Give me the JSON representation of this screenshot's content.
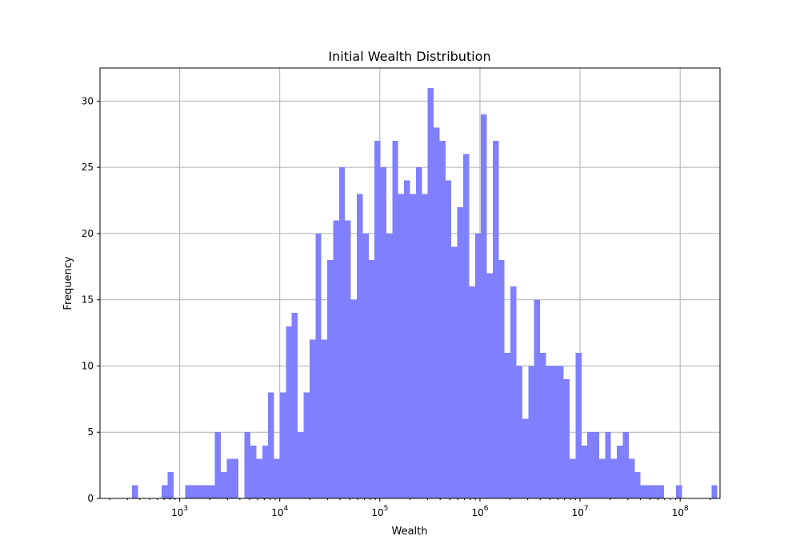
{
  "chart_data": {
    "type": "bar",
    "title": "Initial Wealth Distribution",
    "xlabel": "Wealth",
    "ylabel": "Frequency",
    "x_scale": "log",
    "xlim": [
      160,
      250000000
    ],
    "ylim": [
      0,
      32.5
    ],
    "grid": true,
    "bar_color": "#8080ff",
    "x_ticks": [
      {
        "value": 1000,
        "base": "10",
        "exp": "3"
      },
      {
        "value": 10000,
        "base": "10",
        "exp": "4"
      },
      {
        "value": 100000,
        "base": "10",
        "exp": "5"
      },
      {
        "value": 1000000,
        "base": "10",
        "exp": "6"
      },
      {
        "value": 10000000,
        "base": "10",
        "exp": "7"
      },
      {
        "value": 100000000,
        "base": "10",
        "exp": "8"
      }
    ],
    "y_ticks": [
      {
        "value": 0,
        "label": "0"
      },
      {
        "value": 5,
        "label": "5"
      },
      {
        "value": 10,
        "label": "10"
      },
      {
        "value": 15,
        "label": "15"
      },
      {
        "value": 20,
        "label": "20"
      },
      {
        "value": 25,
        "label": "25"
      },
      {
        "value": 30,
        "label": "30"
      }
    ],
    "bin_edges": [
      335,
      384,
      440,
      504,
      578,
      662,
      758,
      869,
      995,
      1140,
      1306,
      1496,
      1714,
      1964,
      2250,
      2578,
      2953,
      3383,
      3876,
      4441,
      5088,
      5829,
      6677,
      7650,
      8765,
      10041,
      11504,
      13180,
      15099,
      17299,
      19819,
      22705,
      26012,
      29801,
      34142,
      39114,
      44811,
      51337,
      58815,
      67381,
      77195,
      88439,
      101320,
      116078,
      132985,
      152354,
      174545,
      199968,
      229093,
      262461,
      300689,
      344486,
      394660,
      452144,
      518000,
      593447,
      679884,
      778911,
      892362,
      1022337,
      1171240,
      1341830,
      1537267,
      1761170,
      2017685,
      2311561,
      2648241,
      3033958,
      3475856,
      3982117,
      4562116,
      5226595,
      5987856,
      6859994,
      7859160,
      9003855,
      10315276,
      11817707,
      13538968,
      15510937,
      17770124,
      20358378,
      23323616,
      26720745,
      30612672,
      35071463,
      40179671,
      46031902,
      52736520,
      60417666,
      69217586,
      79299232,
      90849327,
      104081680,
      119241374,
      136609078,
      156506418,
      179301817,
      205417423,
      235336768
    ]
  },
  "histogram": {
    "counts": [
      1,
      0,
      0,
      0,
      0,
      1,
      2,
      0,
      0,
      1,
      1,
      1,
      1,
      1,
      5,
      2,
      3,
      3,
      0,
      5,
      4,
      3,
      4,
      8,
      3,
      8,
      13,
      14,
      5,
      8,
      12,
      20,
      12,
      18,
      21,
      25,
      21,
      15,
      23,
      20,
      18,
      27,
      25,
      20,
      27,
      23,
      24,
      23,
      25,
      23,
      31,
      28,
      27,
      24,
      19,
      22,
      26,
      16,
      20,
      29,
      17,
      27,
      18,
      11,
      16,
      10,
      6,
      10,
      15,
      11,
      10,
      10,
      10,
      9,
      3,
      11,
      4,
      5,
      5,
      3,
      5,
      3,
      4,
      5,
      3,
      2,
      1,
      1,
      1,
      1,
      0,
      0,
      1,
      0,
      0,
      0,
      0,
      0,
      1
    ]
  }
}
